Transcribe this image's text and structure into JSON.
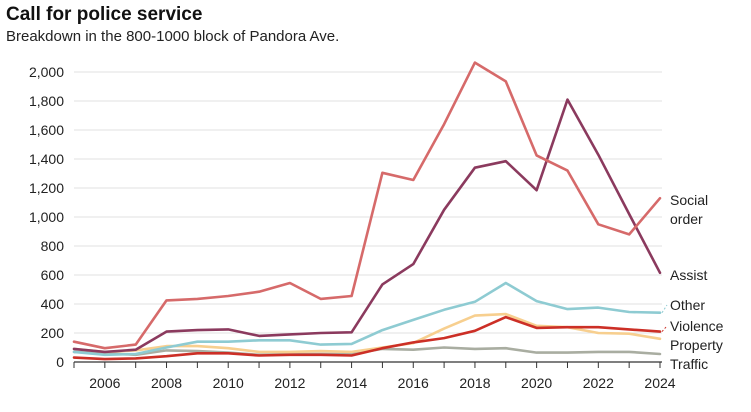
{
  "chart_data": {
    "type": "line",
    "title": "Call for police service",
    "subtitle": "Breakdown in the 800-1000 block of Pandora Ave.",
    "xlabel": "",
    "ylabel": "",
    "x": [
      2005,
      2006,
      2007,
      2008,
      2009,
      2010,
      2011,
      2012,
      2013,
      2014,
      2015,
      2016,
      2017,
      2018,
      2019,
      2020,
      2021,
      2022,
      2023,
      2024
    ],
    "xticks": [
      "2006",
      "2008",
      "2010",
      "2012",
      "2014",
      "2016",
      "2018",
      "2020",
      "2022",
      "2024"
    ],
    "ylim": [
      0,
      2000
    ],
    "yticks": [
      "0",
      "200",
      "400",
      "600",
      "800",
      "1,000",
      "1,200",
      "1,400",
      "1,600",
      "1,800",
      "2,000"
    ],
    "grid": true,
    "legend": "inline-right",
    "series": [
      {
        "name": "Traffic",
        "label": "Traffic",
        "color": "#a9ada1",
        "values": [
          70,
          60,
          50,
          80,
          75,
          65,
          50,
          55,
          55,
          55,
          90,
          85,
          100,
          90,
          95,
          65,
          65,
          70,
          70,
          55
        ]
      },
      {
        "name": "Property",
        "label": "Property",
        "color": "#f7cf8f",
        "values": [
          90,
          70,
          80,
          110,
          110,
          95,
          70,
          70,
          75,
          70,
          100,
          130,
          230,
          320,
          330,
          250,
          240,
          200,
          195,
          160
        ]
      },
      {
        "name": "Other",
        "label": "Other",
        "color": "#8ecbd2",
        "values": [
          70,
          50,
          55,
          100,
          140,
          140,
          150,
          150,
          120,
          125,
          220,
          290,
          360,
          415,
          545,
          420,
          365,
          375,
          345,
          340
        ]
      },
      {
        "name": "Assist",
        "label": "Assist",
        "color": "#8b3a5e",
        "values": [
          90,
          70,
          85,
          210,
          220,
          225,
          180,
          190,
          200,
          205,
          535,
          675,
          1050,
          1340,
          1385,
          1185,
          1810,
          1430,
          1020,
          615
        ]
      },
      {
        "name": "Social order",
        "label": [
          "Social",
          "order"
        ],
        "color": "#d66a6a",
        "values": [
          140,
          95,
          120,
          425,
          435,
          455,
          485,
          545,
          435,
          455,
          1305,
          1255,
          1640,
          2065,
          1935,
          1425,
          1320,
          950,
          880,
          1130
        ]
      },
      {
        "name": "Violence",
        "label": "Violence",
        "color": "#cc2f26",
        "values": [
          30,
          20,
          25,
          40,
          60,
          60,
          45,
          50,
          50,
          45,
          95,
          135,
          165,
          215,
          310,
          235,
          240,
          240,
          225,
          210
        ]
      }
    ],
    "colors": {
      "grid": "#e2e2e2",
      "axis": "#333333"
    }
  }
}
